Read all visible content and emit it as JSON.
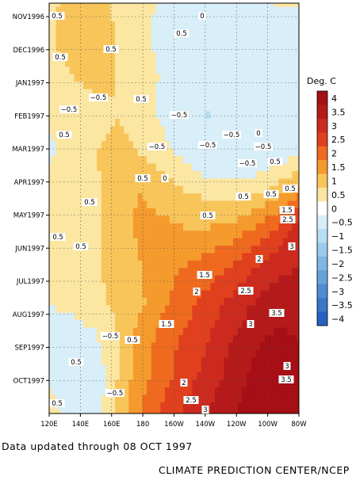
{
  "chart_data": {
    "type": "heatmap",
    "title": "",
    "xlabel": "",
    "ylabel": "",
    "colorbar_title": "Deg. C",
    "x_ticks": [
      "120E",
      "140E",
      "160E",
      "180",
      "160W",
      "140W",
      "120W",
      "100W",
      "80W"
    ],
    "y_ticks": [
      "NOV1996",
      "DEC1996",
      "JAN1997",
      "FEB1997",
      "MAR1997",
      "APR1997",
      "MAY1997",
      "JUN1997",
      "JUL1997",
      "AUG1997",
      "SEP1997",
      "OCT1997"
    ],
    "colorbar_levels": [
      "4",
      "3.5",
      "3",
      "2.5",
      "2",
      "1.5",
      "1",
      "0.5",
      "0",
      "−0.5",
      "−1",
      "−1.5",
      "−2",
      "−2.5",
      "−3",
      "−3.5",
      "−4"
    ],
    "colorbar_colors": [
      "#a50f15",
      "#b51a1a",
      "#cc2a1e",
      "#e0401d",
      "#ef6a1e",
      "#f59a2c",
      "#f8c55a",
      "#fbe6a2",
      "#ffffff",
      "#d8eef8",
      "#b7def2",
      "#9acbea",
      "#7fb6e3",
      "#66a1da",
      "#4f8bd2",
      "#3a76ca",
      "#2860c2"
    ],
    "grid": true,
    "legend": "right",
    "values": [
      [
        0.3,
        0.8,
        0.7,
        0.4,
        0.2,
        -0.1,
        -0.3,
        -0.4,
        -0.3,
        -0.1,
        0.0,
        0.0
      ],
      [
        0.3,
        1.0,
        0.8,
        0.5,
        0.2,
        -0.2,
        -0.6,
        -0.8,
        -0.7,
        -0.4,
        -0.3,
        -0.2
      ],
      [
        0.0,
        0.5,
        0.6,
        0.5,
        0.4,
        -0.1,
        -0.5,
        -0.9,
        -0.9,
        -0.6,
        -0.5,
        -0.4
      ],
      [
        0.1,
        0.3,
        0.4,
        0.5,
        0.3,
        -0.1,
        -0.6,
        -1.0,
        -0.9,
        -0.7,
        -0.6,
        -0.5
      ],
      [
        -0.1,
        0.2,
        0.5,
        0.6,
        0.5,
        0.2,
        -0.2,
        -0.6,
        -0.6,
        -0.5,
        -0.3,
        -0.2
      ],
      [
        0.2,
        0.3,
        0.4,
        0.8,
        1.0,
        0.8,
        0.5,
        0.3,
        0.2,
        0.3,
        0.6,
        1.2
      ],
      [
        0.0,
        0.3,
        0.4,
        0.8,
        1.1,
        1.1,
        1.0,
        1.0,
        1.1,
        1.5,
        2.0,
        2.8
      ],
      [
        0.2,
        0.3,
        0.4,
        0.7,
        1.0,
        1.3,
        1.5,
        1.7,
        2.0,
        2.4,
        2.8,
        3.0
      ],
      [
        0.0,
        0.1,
        0.4,
        0.6,
        0.9,
        1.4,
        1.8,
        2.2,
        2.6,
        3.0,
        3.3,
        3.3
      ],
      [
        -0.1,
        -0.2,
        -0.1,
        0.5,
        1.2,
        1.7,
        2.1,
        2.5,
        3.0,
        3.4,
        3.6,
        3.5
      ],
      [
        -0.1,
        -0.3,
        -0.4,
        0.5,
        1.3,
        1.8,
        2.3,
        2.7,
        3.2,
        3.6,
        3.8,
        3.7
      ],
      [
        0.2,
        -0.2,
        -0.3,
        0.6,
        1.5,
        2.1,
        2.6,
        3.0,
        3.4,
        3.8,
        3.9,
        3.8
      ]
    ],
    "contour_labels": [
      "0.5",
      "0.5",
      "0.5",
      "0.5",
      "0",
      "0.5",
      "−0.5",
      "−0.5",
      "0.5",
      "−0.5",
      "−0.5",
      "−0.5",
      "0.5",
      "−0.5",
      "−0.5",
      "−0.5",
      "0.5",
      "0.5",
      "0.5",
      "0",
      "0.5",
      "0.5",
      "0.5",
      "0",
      "0.5",
      "1.5",
      "2.5",
      "0.5",
      "3",
      "2",
      "1.5",
      "2",
      "2.5",
      "3",
      "1.5",
      "3.5",
      "−0.5",
      "0.5",
      "0.5",
      "3",
      "2",
      "−0.5",
      "3.5",
      "2.5",
      "3",
      "0.5"
    ]
  },
  "footer": {
    "updated_note": "Data updated through 08 OCT 1997",
    "organization": "CLIMATE PREDICTION CENTER/NCEP"
  }
}
